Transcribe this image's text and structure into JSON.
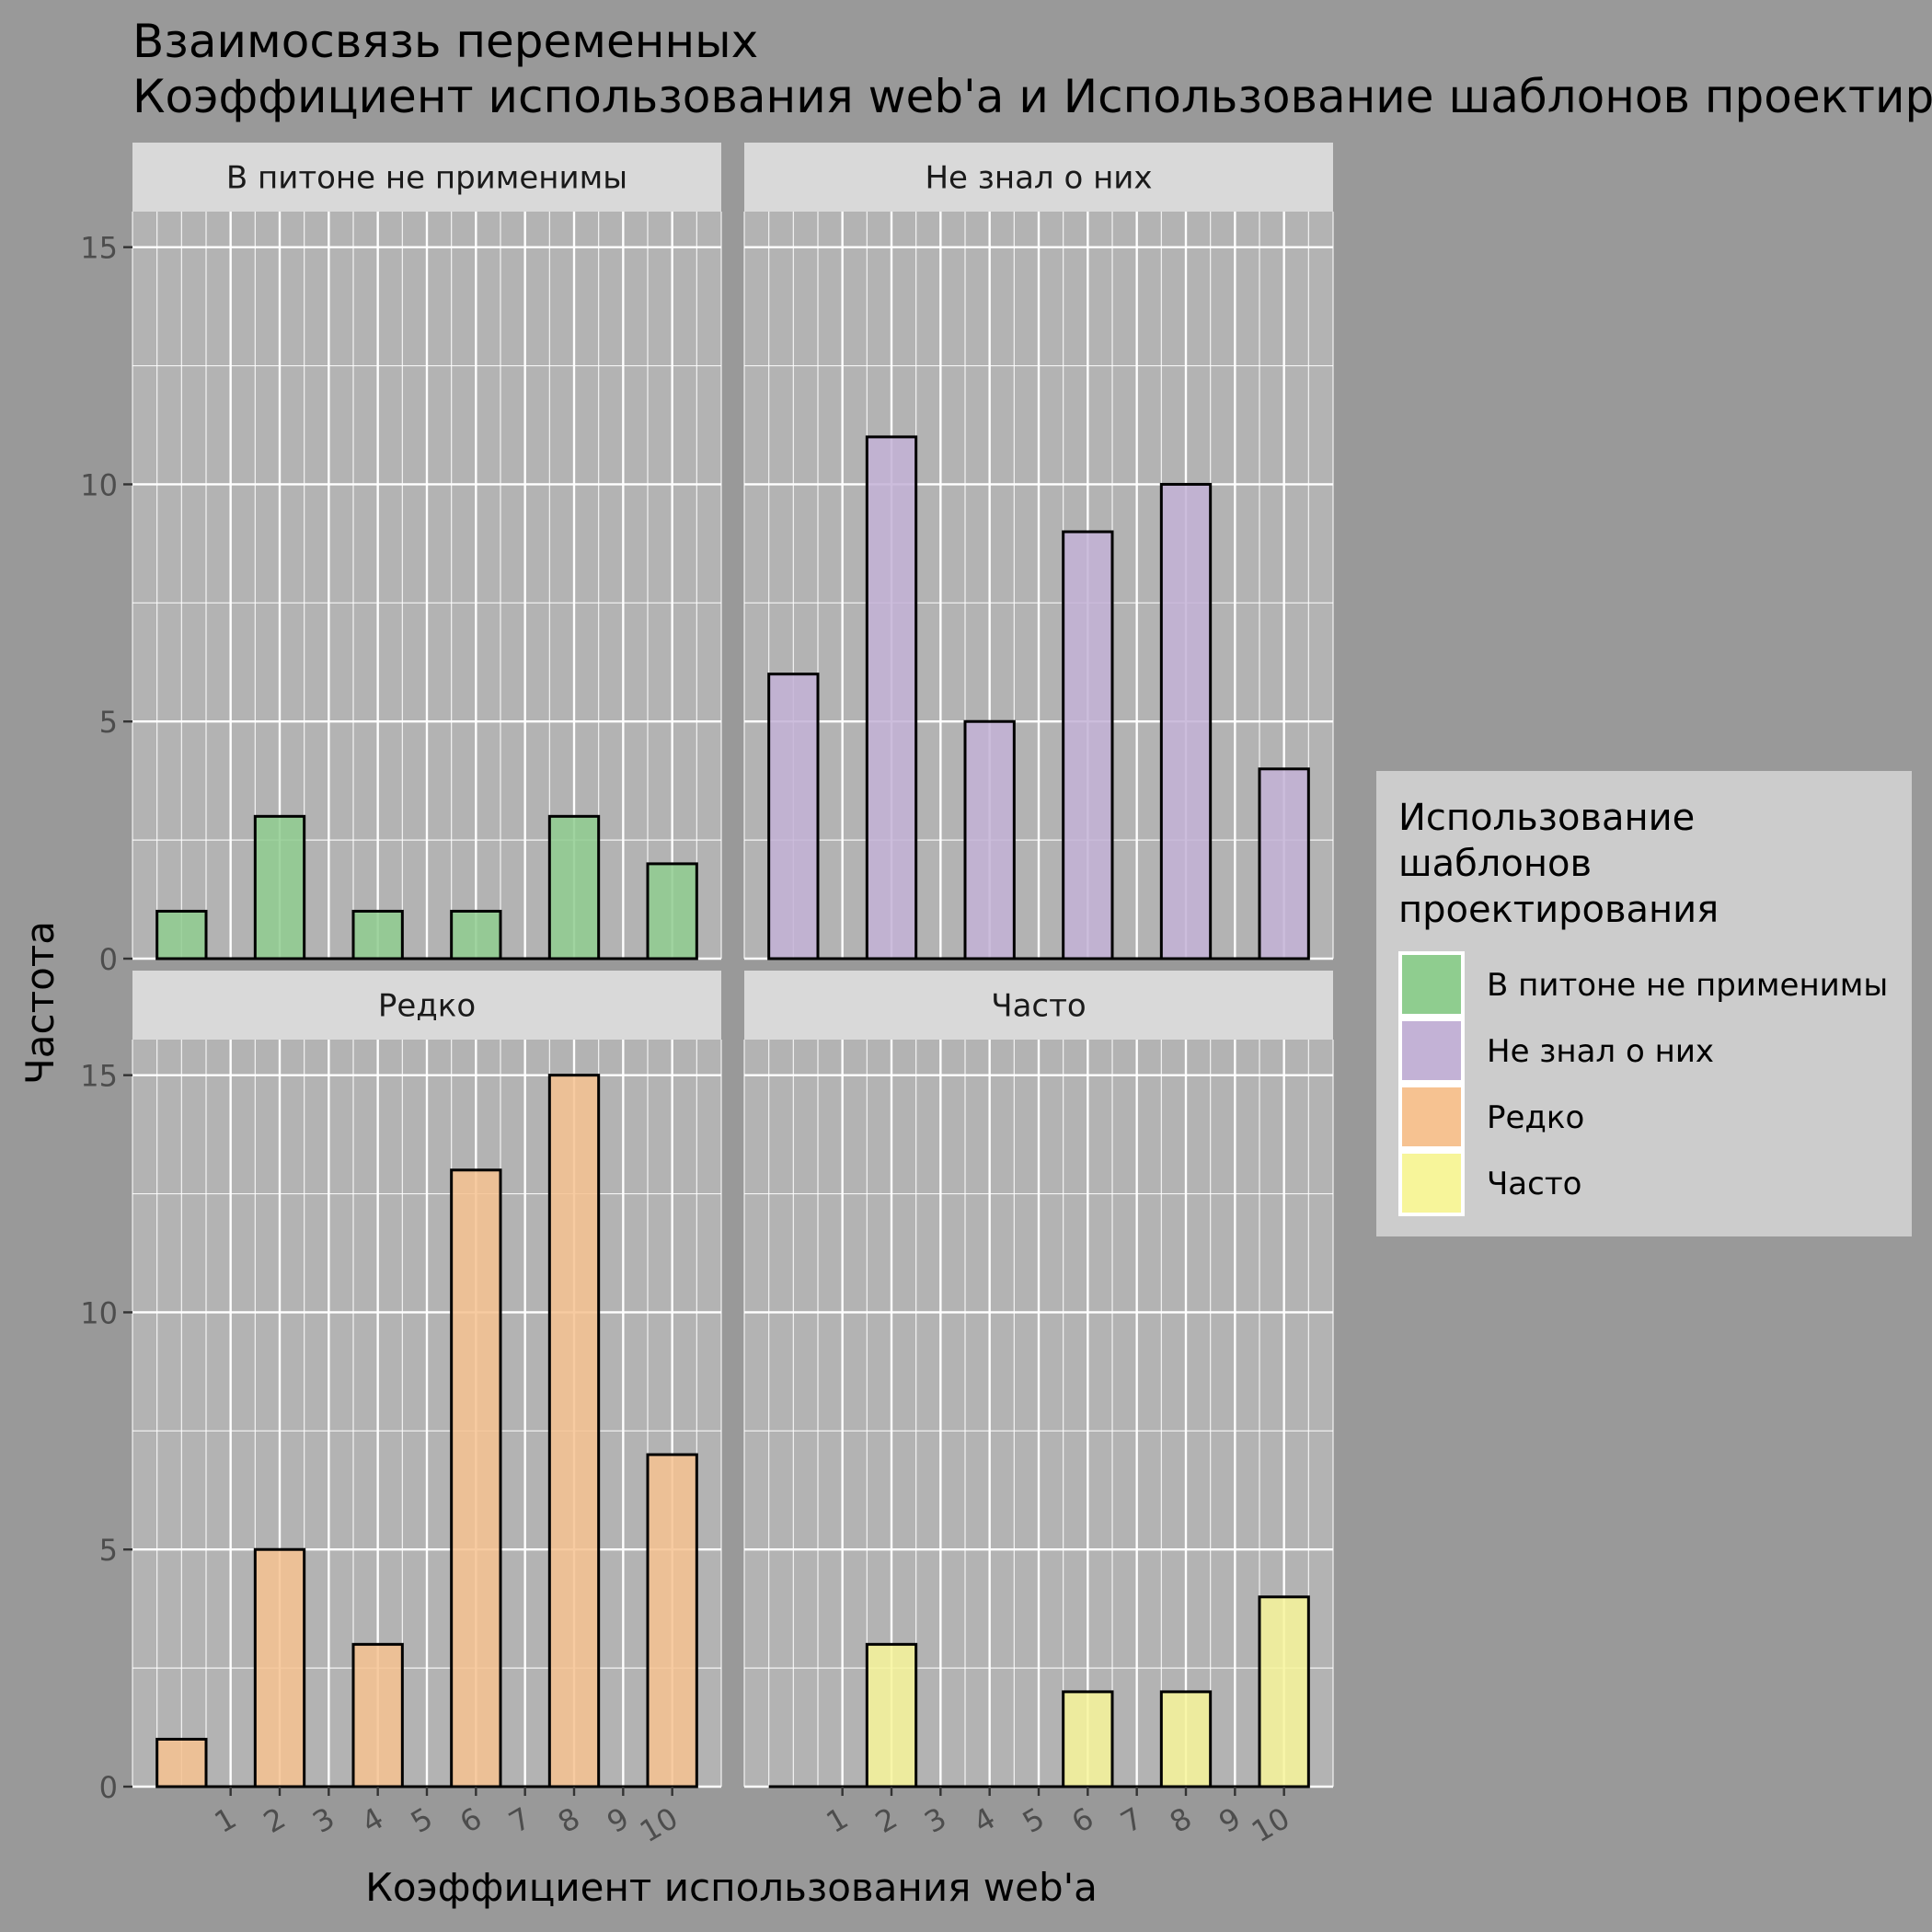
{
  "chart_data": {
    "type": "bar",
    "title": "Взаимосвязь переменных\n Коэффициент использования web'a и Использование шаблонов проектирования",
    "xlabel": "Коэффициент использования web'a",
    "ylabel": "Частота",
    "x_ticks": [
      "1",
      "2",
      "3",
      "4",
      "5",
      "6",
      "7",
      "8",
      "9",
      "10"
    ],
    "y_ticks": [
      "0",
      "5",
      "10",
      "15"
    ],
    "ylim": [
      0,
      15.75
    ],
    "xlim": [
      -1.0,
      11.0
    ],
    "grid": true,
    "legend": {
      "title": "Использование\nшаблонов\nпроектирования",
      "position": "right"
    },
    "panels": [
      {
        "name": "В питоне не применимы",
        "color": "#8FCD8F",
        "bars": [
          {
            "x": 0,
            "y": 1
          },
          {
            "x": 2,
            "y": 3
          },
          {
            "x": 4,
            "y": 1
          },
          {
            "x": 6,
            "y": 1
          },
          {
            "x": 8,
            "y": 3
          },
          {
            "x": 10,
            "y": 2
          }
        ]
      },
      {
        "name": "Не знал о них",
        "color": "#C3B2D6",
        "bars": [
          {
            "x": 0,
            "y": 6
          },
          {
            "x": 2,
            "y": 11
          },
          {
            "x": 4,
            "y": 5
          },
          {
            "x": 6,
            "y": 9
          },
          {
            "x": 8,
            "y": 10
          },
          {
            "x": 10,
            "y": 4
          }
        ]
      },
      {
        "name": "Редко",
        "color": "#F6C291",
        "bars": [
          {
            "x": 0,
            "y": 1
          },
          {
            "x": 2,
            "y": 5
          },
          {
            "x": 4,
            "y": 3
          },
          {
            "x": 6,
            "y": 13
          },
          {
            "x": 8,
            "y": 15
          },
          {
            "x": 10,
            "y": 7
          }
        ]
      },
      {
        "name": "Часто",
        "color": "#F7F59A",
        "bars": [
          {
            "x": 0,
            "y": 0
          },
          {
            "x": 2,
            "y": 3
          },
          {
            "x": 4,
            "y": 0
          },
          {
            "x": 6,
            "y": 2
          },
          {
            "x": 8,
            "y": 2
          },
          {
            "x": 10,
            "y": 4
          }
        ]
      }
    ]
  }
}
